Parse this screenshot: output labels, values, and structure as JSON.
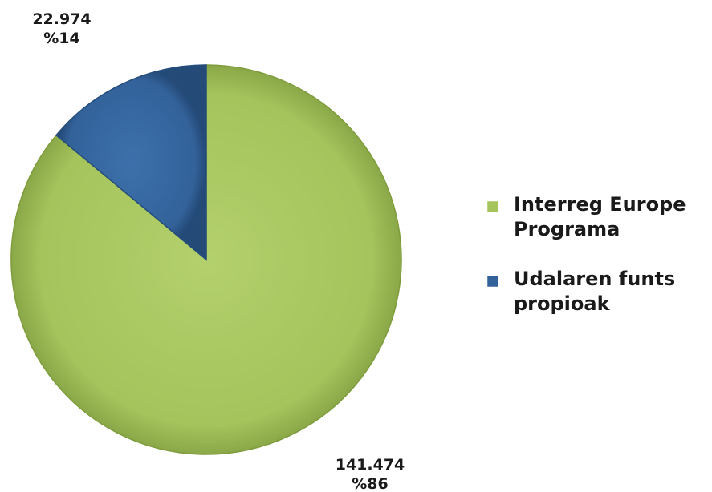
{
  "chart_data": {
    "type": "pie",
    "series": [
      {
        "name": "Interreg Europe Programa",
        "value": 141474,
        "value_label": "141.474",
        "percent_label": "%86",
        "color": "#a5c45c",
        "legend_lines": [
          "Interreg Europe",
          "Programa"
        ]
      },
      {
        "name": "Udalaren funts propioak",
        "value": 22974,
        "value_label": "22.974",
        "percent_label": "%14",
        "color": "#33629a",
        "legend_lines": [
          "Udalaren funts",
          "propioak"
        ]
      }
    ],
    "legend_position": "right",
    "start_angle": "12 o'clock",
    "direction": "clockwise"
  }
}
